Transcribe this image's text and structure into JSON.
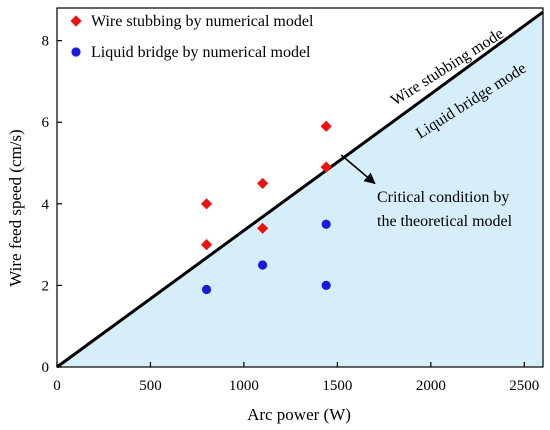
{
  "chart_data": {
    "type": "scatter",
    "xlabel": "Arc power (W)",
    "ylabel": "Wire feed speed (cm/s)",
    "xlim": [
      0,
      2600
    ],
    "ylim": [
      0,
      8.8
    ],
    "xticks": [
      0,
      500,
      1000,
      1500,
      2000,
      2500
    ],
    "yticks": [
      0,
      2,
      4,
      6,
      8
    ],
    "grid": false,
    "legend_position": "top-left",
    "series": [
      {
        "name": "Wire stubbing by numerical model",
        "marker": "diamond",
        "color": "#ee1111",
        "x": [
          800,
          800,
          1100,
          1100,
          1440,
          1440
        ],
        "y": [
          4.0,
          3.0,
          4.5,
          3.4,
          5.9,
          4.9
        ]
      },
      {
        "name": "Liquid bridge by numerical model",
        "marker": "circle",
        "color": "#1a1adc",
        "x": [
          800,
          1100,
          1440,
          1440
        ],
        "y": [
          1.9,
          2.5,
          3.5,
          2.0
        ]
      }
    ],
    "boundary_line": {
      "x": [
        0,
        2600
      ],
      "y": [
        0,
        8.7
      ],
      "color": "#000000",
      "fill_below_color": "#d6eef9",
      "label_above": "Wire stubbing mode",
      "label_below": "Liquid bridge mode"
    },
    "annotation": {
      "line1": "Critical condition by",
      "line2": "the theoretical model",
      "arrow_from": [
        1520,
        5.2
      ],
      "arrow_to": [
        1700,
        4.5
      ]
    }
  }
}
